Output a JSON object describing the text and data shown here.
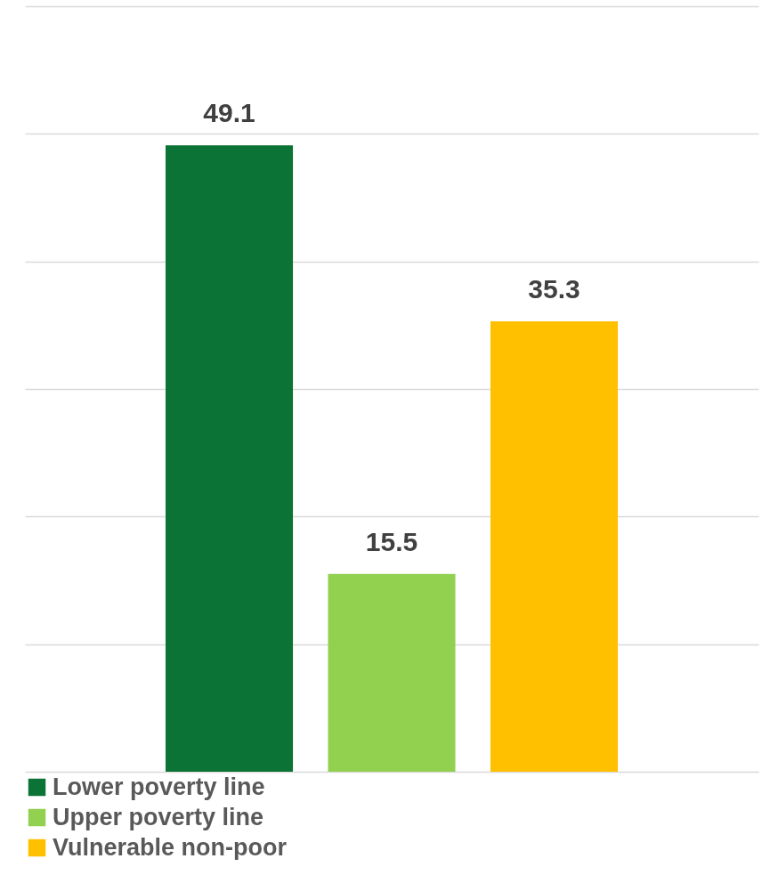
{
  "chart_data": {
    "type": "bar",
    "categories": [
      null
    ],
    "series": [
      {
        "name": "Lower poverty line",
        "color": "#0b7335",
        "values": [
          49.1
        ]
      },
      {
        "name": "Upper poverty line",
        "color": "#92d050",
        "values": [
          15.5
        ]
      },
      {
        "name": "Vulnerable non-poor",
        "color": "#ffc000",
        "values": [
          35.3
        ]
      }
    ],
    "ylim": [
      0,
      60
    ],
    "yticks": [
      {
        "value": 0,
        "label": null
      },
      {
        "value": 10,
        "label": null
      },
      {
        "value": 20,
        "label": null
      },
      {
        "value": 30,
        "label": null
      },
      {
        "value": 40,
        "label": null
      },
      {
        "value": 50,
        "label": null
      },
      {
        "value": 60,
        "label": null
      }
    ],
    "grid": "y",
    "tick_labels": false,
    "data_labels": true,
    "legend": "bottom"
  }
}
